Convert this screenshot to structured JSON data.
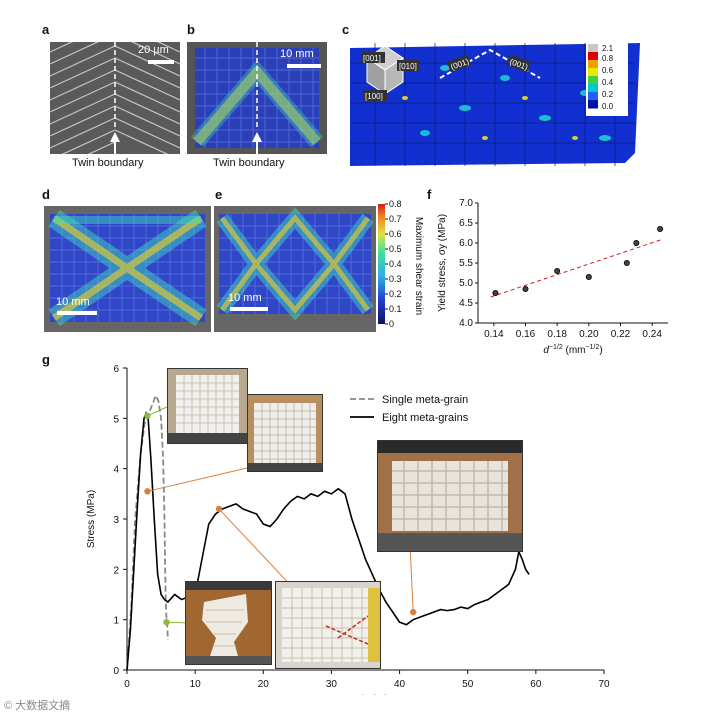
{
  "labels": {
    "a": "a",
    "b": "b",
    "c": "c",
    "d": "d",
    "e": "e",
    "f": "f",
    "g": "g"
  },
  "panel_a": {
    "scale": "20 µm",
    "caption": "Twin boundary"
  },
  "panel_b": {
    "scale": "10 mm",
    "caption": "Twin boundary"
  },
  "panel_c": {
    "directions": [
      "[001]",
      "[010]",
      "[100]",
      "(001)",
      "(001)"
    ],
    "colorbar_ticks": [
      "2.1",
      "0.8",
      "0.6",
      "0.4",
      "0.2",
      "0.0"
    ],
    "colorbar_colors": [
      "#c8c8c8",
      "#e00000",
      "#f0a000",
      "#e8e800",
      "#40d040",
      "#00c8c8",
      "#2060ff",
      "#0010a0"
    ]
  },
  "panel_d": {
    "scale": "10 mm"
  },
  "panel_e": {
    "scale": "10 mm"
  },
  "colorbar_de": {
    "title": "Maximum shear strain",
    "ticks": [
      "0.8",
      "0.7",
      "0.6",
      "0.5",
      "0.4",
      "0.3",
      "0.2",
      "0.1",
      "0"
    ]
  },
  "chart_data": [
    {
      "panel": "f",
      "type": "scatter",
      "xlabel": "d⁻¹ᐟ² (mm⁻¹ᐟ²)",
      "xlabel_main": "d",
      "xlabel_sup": "−1/2",
      "xlabel_unit": " (mm",
      "xlabel_unit_sup": "−1/2",
      "xlabel_close": ")",
      "ylabel": "Yield stress, σy (MPa)",
      "xlim": [
        0.13,
        0.25
      ],
      "ylim": [
        4.0,
        7.0
      ],
      "xticks": [
        "0.14",
        "0.16",
        "0.18",
        "0.20",
        "0.22",
        "0.24"
      ],
      "xtick_values": [
        0.14,
        0.16,
        0.18,
        0.2,
        0.22,
        0.24
      ],
      "yticks": [
        "4.0",
        "4.5",
        "5.0",
        "5.5",
        "6.0",
        "6.5",
        "7.0"
      ],
      "ytick_values": [
        4.0,
        4.5,
        5.0,
        5.5,
        6.0,
        6.5,
        7.0
      ],
      "points": [
        [
          0.141,
          4.75
        ],
        [
          0.16,
          4.85
        ],
        [
          0.18,
          5.3
        ],
        [
          0.2,
          5.15
        ],
        [
          0.224,
          5.5
        ],
        [
          0.23,
          6.0
        ],
        [
          0.245,
          6.35
        ]
      ],
      "fit": [
        [
          0.138,
          4.65
        ],
        [
          0.247,
          6.1
        ]
      ]
    },
    {
      "panel": "g",
      "type": "line",
      "xlabel": "Strain (%)",
      "ylabel": "Stress (MPa)",
      "xlim": [
        0,
        70
      ],
      "ylim": [
        0,
        6
      ],
      "xticks": [
        "0",
        "10",
        "20",
        "30",
        "40",
        "50",
        "60",
        "70"
      ],
      "xtick_values": [
        0,
        10,
        20,
        30,
        40,
        50,
        60,
        70
      ],
      "yticks": [
        "0",
        "1",
        "2",
        "3",
        "4",
        "5",
        "6"
      ],
      "ytick_values": [
        0,
        1,
        2,
        3,
        4,
        5,
        6
      ],
      "series": [
        {
          "name": "Single meta-grain",
          "style": "dashed",
          "color": "#888888",
          "x": [
            0,
            0.6,
            1.2,
            2.0,
            2.6,
            3.2,
            3.8,
            4.2,
            4.6,
            5.0,
            5.3,
            5.5,
            5.6,
            5.7,
            5.8,
            5.9,
            6.0
          ],
          "y": [
            0,
            1.2,
            3.0,
            4.3,
            4.9,
            5.1,
            5.3,
            5.45,
            5.35,
            5.0,
            4.2,
            3.0,
            2.0,
            1.3,
            1.0,
            0.9,
            0.6
          ]
        },
        {
          "name": "Eight meta-grains",
          "style": "solid",
          "color": "#000000",
          "x": [
            0,
            0.5,
            1.0,
            1.5,
            2.0,
            2.5,
            2.8,
            3.1,
            3.5,
            4.0,
            4.5,
            5.0,
            5.5,
            6.0,
            7.0,
            8.0,
            9.0,
            10.0,
            11.0,
            12.0,
            13.0,
            14.0,
            15.0,
            16.0,
            17.0,
            18.0,
            19.0,
            20.0,
            21.0,
            22.0,
            23.0,
            24.0,
            25.0,
            26.0,
            27.0,
            28.0,
            29.0,
            30.0,
            31.0,
            31.5,
            32.0,
            33.0,
            34.0,
            35.0,
            36.0,
            37.0,
            38.0,
            39.0,
            40.0,
            41.0,
            42.0,
            43.0,
            44.0,
            45.0,
            46.0,
            47.0,
            48.0,
            49.0,
            50.0,
            51.0,
            52.0,
            53.0,
            54.0,
            55.0,
            56.0,
            57.0,
            57.5,
            58.0,
            58.5,
            59.0
          ],
          "y": [
            0,
            0.8,
            2.0,
            3.2,
            4.3,
            5.0,
            5.1,
            5.0,
            4.2,
            3.0,
            1.9,
            1.5,
            1.4,
            1.35,
            1.5,
            1.4,
            1.45,
            1.5,
            2.2,
            2.9,
            3.1,
            3.2,
            3.25,
            3.3,
            3.2,
            3.15,
            3.1,
            2.9,
            2.85,
            3.0,
            3.2,
            3.35,
            3.45,
            3.4,
            3.5,
            3.45,
            3.55,
            3.5,
            3.6,
            3.55,
            3.5,
            3.0,
            2.6,
            2.2,
            1.9,
            1.6,
            1.35,
            1.15,
            0.95,
            0.9,
            1.0,
            1.05,
            1.1,
            1.15,
            1.2,
            1.18,
            1.2,
            1.25,
            1.22,
            1.3,
            1.35,
            1.4,
            1.5,
            1.6,
            1.7,
            2.0,
            2.35,
            2.2,
            2.0,
            1.9
          ]
        }
      ]
    }
  ],
  "watermark": "© 大数据文摘"
}
